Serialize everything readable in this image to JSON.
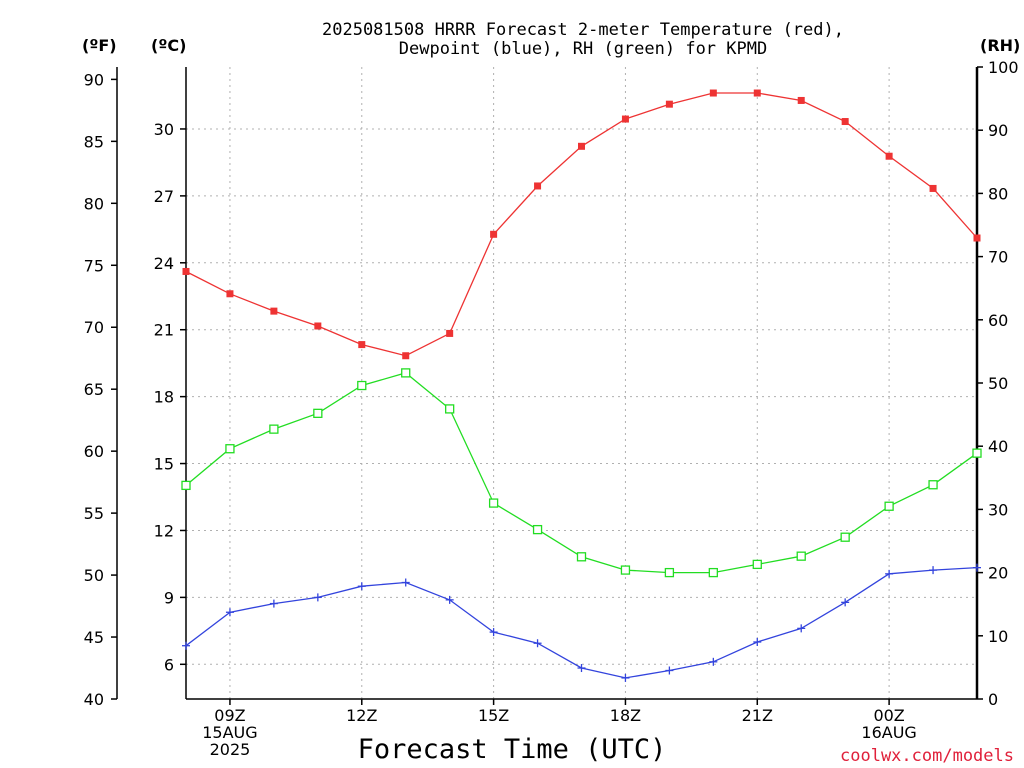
{
  "chart_data": {
    "type": "line",
    "title_line1": "2025081508 HRRR Forecast 2-meter Temperature (red),",
    "title_line2": "Dewpoint (blue), RH (green) for KPMD",
    "xlabel": "Forecast Time (UTC)",
    "credit": "coolwx.com/models",
    "unit_f": "(ºF)",
    "unit_c": "(ºC)",
    "unit_rh": "(RH)",
    "x_hours": [
      8,
      9,
      10,
      11,
      12,
      13,
      14,
      15,
      16,
      17,
      18,
      19,
      20,
      21,
      22,
      23,
      24,
      25,
      26
    ],
    "xlim": [
      8,
      26
    ],
    "x_ticks": [
      {
        "hour": 9,
        "lines": [
          "09Z",
          "15AUG",
          "2025"
        ]
      },
      {
        "hour": 12,
        "lines": [
          "12Z"
        ]
      },
      {
        "hour": 15,
        "lines": [
          "15Z"
        ]
      },
      {
        "hour": 18,
        "lines": [
          "18Z"
        ]
      },
      {
        "hour": 21,
        "lines": [
          "21Z"
        ]
      },
      {
        "hour": 24,
        "lines": [
          "00Z",
          "16AUG"
        ]
      }
    ],
    "left_axis_f": {
      "ticks": [
        40,
        45,
        50,
        55,
        60,
        65,
        70,
        75,
        80,
        85,
        90
      ],
      "ylim": [
        40,
        91
      ]
    },
    "left_axis_c": {
      "ticks": [
        6,
        9,
        12,
        15,
        18,
        21,
        24,
        27,
        30
      ]
    },
    "right_axis_rh": {
      "ticks": [
        0,
        10,
        20,
        30,
        40,
        50,
        60,
        70,
        80,
        90,
        100
      ],
      "ylim": [
        0,
        100
      ]
    },
    "grid": true,
    "series": [
      {
        "name": "Temperature",
        "color": "#ee3333",
        "marker": "filled-square",
        "axis": "F",
        "values": [
          74.5,
          72.7,
          71.3,
          70.1,
          68.6,
          67.7,
          69.5,
          77.5,
          81.4,
          84.6,
          86.8,
          88.0,
          88.9,
          88.9,
          88.3,
          86.6,
          83.8,
          81.2,
          77.2
        ]
      },
      {
        "name": "Dewpoint",
        "color": "#3344dd",
        "marker": "plus",
        "axis": "F",
        "values": [
          44.3,
          47.0,
          47.7,
          48.2,
          49.1,
          49.4,
          48.0,
          45.4,
          44.5,
          42.5,
          41.7,
          42.3,
          43.0,
          44.6,
          45.7,
          47.8,
          50.1,
          50.4,
          50.6
        ]
      },
      {
        "name": "RH",
        "color": "#22dd22",
        "marker": "open-square",
        "axis": "RH",
        "values": [
          33.8,
          39.6,
          42.7,
          45.2,
          49.6,
          51.6,
          45.9,
          31.0,
          26.8,
          22.5,
          20.4,
          20.0,
          20.0,
          21.3,
          22.6,
          25.6,
          30.5,
          33.9,
          38.9
        ]
      }
    ]
  }
}
